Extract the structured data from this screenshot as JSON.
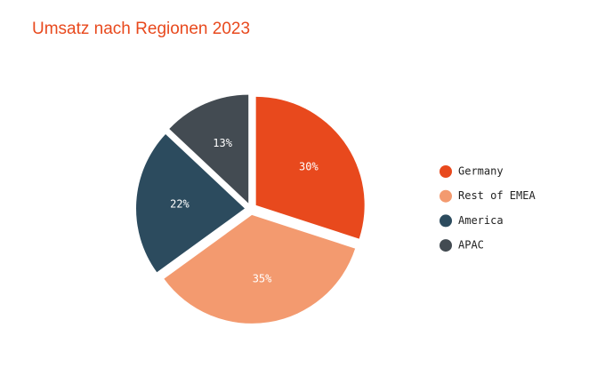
{
  "chart_data": {
    "type": "pie",
    "title": "Umsatz nach Regionen 2023",
    "categories": [
      "Germany",
      "Rest of EMEA",
      "America",
      "APAC"
    ],
    "values": [
      30,
      35,
      22,
      13
    ],
    "value_labels": [
      "30%",
      "35%",
      "22%",
      "13%"
    ],
    "colors": [
      "#e8491d",
      "#f39a6f",
      "#2c4b5e",
      "#434b52"
    ],
    "legend": "right"
  }
}
